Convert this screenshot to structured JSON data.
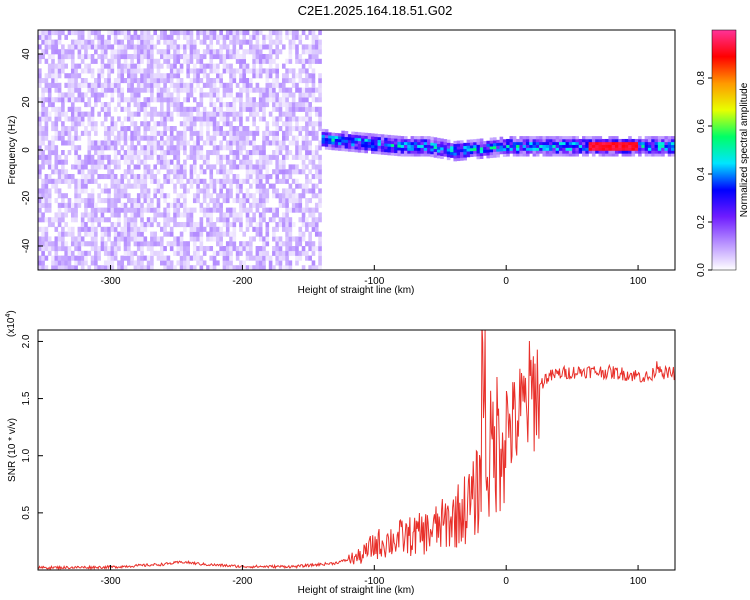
{
  "figure": {
    "title": "C2E1.2025.164.18.51.G02"
  },
  "chart_data": [
    {
      "type": "heatmap",
      "xlabel": "Height of straight line (km)",
      "ylabel": "Frequency (Hz)",
      "xlim": [
        -355,
        128
      ],
      "ylim": [
        -50,
        50
      ],
      "xticks": [
        -300,
        -200,
        -100,
        0,
        100
      ],
      "yticks": [
        -40,
        -20,
        0,
        20,
        40
      ],
      "colorbar": {
        "label": "Normalized spectral amplitude",
        "range": [
          0,
          1
        ],
        "ticks": [
          0.0,
          0.2,
          0.4,
          0.6,
          0.8
        ],
        "tick_labels": [
          "0.0",
          "0.2",
          "0.4",
          "0.6",
          "0.8"
        ],
        "stops": [
          "#ffffff",
          "#b892ff",
          "#6f1cff",
          "#0000ff",
          "#00e5ff",
          "#00ff66",
          "#e8ff00",
          "#ff9900",
          "#ff0000",
          "#ff3399"
        ]
      },
      "regions": [
        {
          "name": "noise",
          "x_range": [
            -355,
            -140
          ],
          "freq_range": [
            -50,
            50
          ],
          "amplitude_range": [
            0.02,
            0.12
          ]
        },
        {
          "name": "signal",
          "x_range": [
            -140,
            128
          ],
          "center_freq": [
            [
              -140,
              4
            ],
            [
              -120,
              3
            ],
            [
              -100,
              2
            ],
            [
              -80,
              1
            ],
            [
              -60,
              1
            ],
            [
              -40,
              -1
            ],
            [
              -20,
              0
            ],
            [
              0,
              1
            ],
            [
              40,
              1
            ],
            [
              80,
              1
            ],
            [
              128,
              1
            ]
          ],
          "amplitude_range": [
            0.2,
            0.95
          ]
        }
      ]
    },
    {
      "type": "line",
      "xlabel": "Height of straight line (km)",
      "ylabel": "SNR (10 * v/v)",
      "multiplier_label": "(x10",
      "multiplier_exp": "4",
      "xlim": [
        -355,
        128
      ],
      "ylim": [
        0,
        2.1
      ],
      "xticks": [
        -300,
        -200,
        -100,
        0,
        100
      ],
      "yticks": [
        0.5,
        1.0,
        1.5,
        2.0
      ],
      "ytick_labels": [
        "0.5",
        "1.0",
        "1.5",
        "2.0"
      ],
      "series": [
        {
          "color": "#e8302a",
          "x": [
            -355,
            -300,
            -260,
            -245,
            -230,
            -200,
            -160,
            -130,
            -110,
            -100,
            -90,
            -80,
            -70,
            -60,
            -50,
            -40,
            -30,
            -25,
            -20,
            -17,
            -15,
            -10,
            -5,
            0,
            5,
            10,
            15,
            20,
            25,
            30,
            40,
            60,
            80,
            100,
            110,
            115,
            120,
            128
          ],
          "y": [
            0.02,
            0.025,
            0.05,
            0.07,
            0.05,
            0.03,
            0.03,
            0.06,
            0.12,
            0.22,
            0.25,
            0.28,
            0.3,
            0.33,
            0.38,
            0.45,
            0.55,
            0.6,
            0.75,
            2.1,
            0.9,
            1.05,
            1.2,
            1.3,
            1.25,
            1.35,
            1.45,
            1.55,
            1.6,
            1.68,
            1.72,
            1.74,
            1.73,
            1.7,
            1.68,
            1.8,
            1.72,
            1.72
          ]
        }
      ]
    }
  ]
}
